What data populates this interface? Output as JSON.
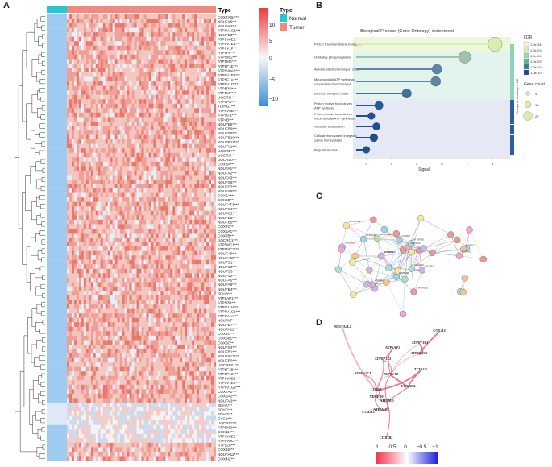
{
  "panels": {
    "a": "A",
    "b": "B",
    "c": "C",
    "d": "D"
  },
  "heatmap": {
    "type_label": "Type",
    "legend_title": "Type",
    "legend_items": [
      {
        "label": "Normal",
        "color": "#25c8d2"
      },
      {
        "label": "Tumor",
        "color": "#f08a7e"
      }
    ],
    "colorbar_ticks": [
      "10",
      "5",
      "0",
      "−5",
      "−10"
    ],
    "genes": [
      "COX7A2L***",
      "NDUFA6***",
      "NDUFA4***",
      "ATP6V1G1***",
      "NDUFB3***",
      "ATP6V0E1***",
      "ATP6V1E1***",
      "ATP6V1F***",
      "ATP5PF***",
      "ATP5MG***",
      "ATP5ME***",
      "ATP5F1E***",
      "ATP6V0A2***",
      "ATP6V1B2***",
      "ATP5F1A***",
      "ATP6V1D***",
      "ATP5PO***",
      "ATP5MF***",
      "UQCRQ***",
      "ATP5PD***",
      "TCIRG1***",
      "ATP6V0B***",
      "ATP5IF1***",
      "ATP4B***",
      "NDUFB8***",
      "NDUFB9***",
      "NDUFS5***",
      "NDUFB10***",
      "NDUFB11***",
      "NDUFV1***",
      "UQCRB***",
      "UQCRH***",
      "UQCR10***",
      "COX8A***",
      "NDUFA1***",
      "NDUFA2***",
      "NDUFA3***",
      "NDUFS6***",
      "NDUFS7***",
      "NDUFS8***",
      "COX5A***",
      "COX5B***",
      "NDUFAF1***",
      "NDUFC1***",
      "NDUFC2***",
      "NDUFB5***",
      "NDUFB6***",
      "COX7C***",
      "COX6A1***",
      "COX7B***",
      "UQCRC1***",
      "ATP5MC1***",
      "ATP5MC3***",
      "NDUFA9***",
      "NDUFA10***",
      "NDUFS1***",
      "NDUFS2***",
      "NDUFS3***",
      "NDUFV2***",
      "NDUFA5***",
      "NDUFA8***",
      "NDUFB4***",
      "SDHB***",
      "ATP6AP1***",
      "ATP5PB***",
      "ATP6V1H***",
      "ATP6V1C1***",
      "ATP6V1A***",
      "NDUFA7***",
      "NDUFB7***",
      "NDUFA11***",
      "COX4I1***",
      "COX6B1***",
      "COX6C***",
      "NDUFS4***",
      "NDUFB1***",
      "NDUFA13***",
      "NDUFB2***",
      "UQCRFS1***",
      "ATP5F1B***",
      "ATP5F1C***",
      "ATP6V0D1***",
      "ATP6V1E2***",
      "ATP6V1G2***",
      "COX7A1***",
      "COX6A2***",
      "NDUFV3***",
      "SDHA***",
      "SDHC***",
      "SDHD***",
      "CYC1***",
      "UQCR11***",
      "ATP5MD***",
      "COX11***",
      "ATP6V0E2***",
      "ATP6V0C***",
      "ATP12A***",
      "COX15***",
      "NDUFA12***",
      "COX4I2***"
    ]
  },
  "enrichment": {
    "title": "Biological Process (Gene Ontology) enrichment",
    "xlabel": "Signal",
    "fdr_title": "FDR",
    "fdr_labels": [
      "1.0e-34",
      "1.0e-29",
      "1.0e-24",
      "1.0e-20",
      "1.0e-15",
      "1.0e-10"
    ],
    "gene_count_title": "Gene count",
    "gene_count_labels": [
      "5",
      "15",
      "20"
    ],
    "group_title": "Groups at similarity ≥ 0.8"
  },
  "chart_data": {
    "type": "lollipop",
    "title": "Biological Process (Gene Ontology) enrichment",
    "xlabel": "Signal",
    "xlim": [
      2.6,
      8.6
    ],
    "xticks": [
      3,
      4,
      5,
      6,
      7,
      8
    ],
    "categories": [
      "Proton transmembrane transport",
      "Oxidative phosphorylation",
      "Aerobic electron transport chain",
      "Mitochondrial ATP synthesis coupled electron transport",
      "Electron transport chain",
      "Proton motive force-driven ATP synthesis",
      "Proton motive force-driven mitochondrial ATP synthesis",
      "Vacuolar acidification",
      "Cellular monovalent inorganic cation homeostasis",
      "Regulation of pH"
    ],
    "signal": [
      8.1,
      6.9,
      5.8,
      5.75,
      4.6,
      3.5,
      3.2,
      3.4,
      3.3,
      3.0
    ],
    "gene_count": [
      22,
      18,
      13,
      13,
      12,
      10,
      7,
      8,
      9,
      7
    ],
    "fdr_exponent": [
      -34,
      -29,
      -20,
      -20,
      -16,
      -12,
      -10,
      -10,
      -10,
      -10
    ]
  },
  "network": {
    "labels": [
      "ATP6V1E2",
      "ATP6V0E",
      "ATP5MF",
      "NDUFA4",
      "NDUFA4L2",
      "ATP5ME",
      "ATP6V1B2",
      "NDUFA6",
      "COX7A2",
      "ATP5F1E",
      "COX4I2",
      "ATP6V0A2",
      "NDUFS5",
      "UQCRQ",
      "TCIRG1",
      "COX6B2"
    ]
  },
  "correlation": {
    "nodes": [
      "NDUFA4L2",
      "COX4I2",
      "ATP6AP1",
      "ATP6V1B1",
      "ATP6V1C2",
      "ATP6V1E2",
      "TCIRG1",
      "ATP6V1C1",
      "ATP6V1D",
      "COX6C",
      "UQCRHL",
      "NDUFB9",
      "ATP5MD",
      "ATP5MC1",
      "COX4I2",
      "COX7B2"
    ],
    "scale_ticks": [
      "1",
      "0.5",
      "0",
      "−0.5",
      "−1"
    ]
  }
}
